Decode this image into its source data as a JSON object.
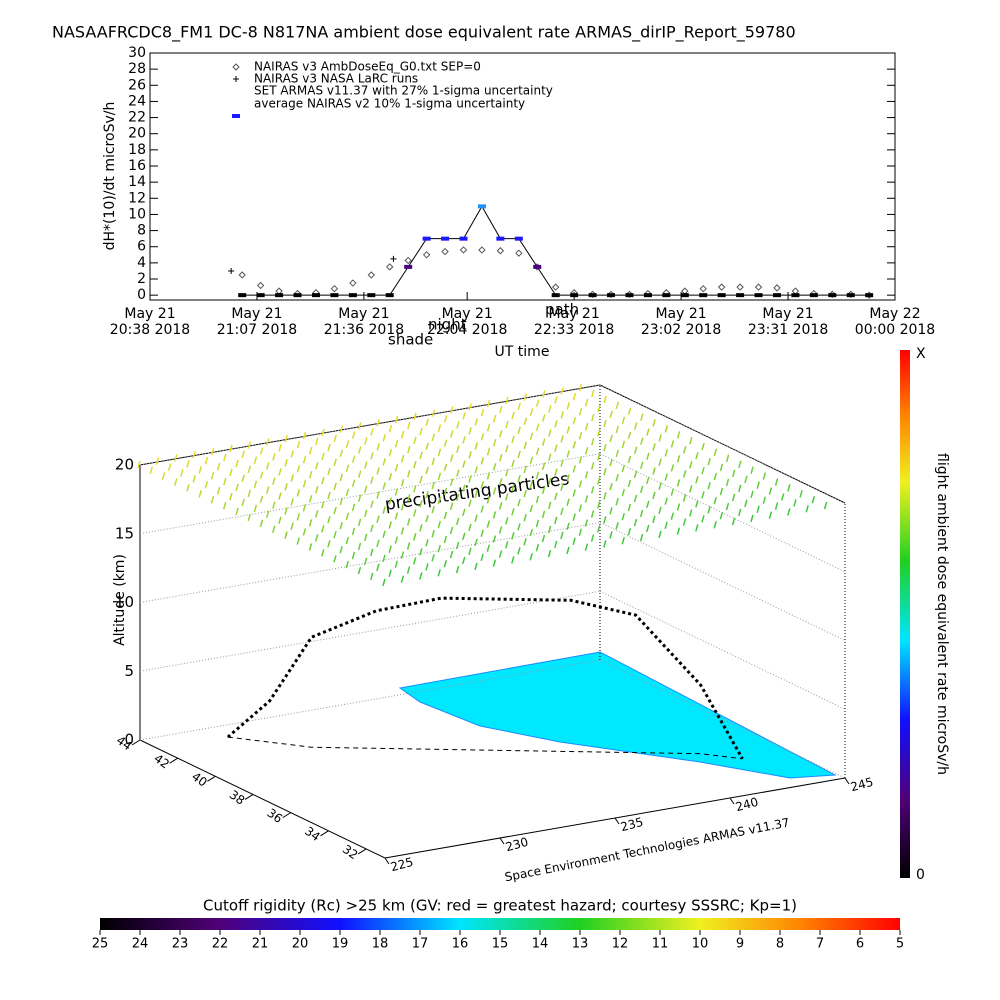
{
  "chart_data": [
    {
      "type": "line",
      "title": "NASAAFRCDC8_FM1 DC-8   N817NA ambient dose equivalent rate ARMAS_dirIP_Report_59780",
      "ylabel": "dH*(10)/dt microSv/h",
      "xlabel": "UT time",
      "annotations": [
        "shade",
        "night",
        "path",
        "average NAIRAS v2 10% 1-sigma uncertainty"
      ],
      "xlim": [
        0,
        202
      ],
      "xticks": [
        {
          "value": 0,
          "label": "May 21",
          "sublabel": "20:38 2018"
        },
        {
          "value": 29,
          "label": "May 21",
          "sublabel": "21:07 2018"
        },
        {
          "value": 58,
          "label": "May 21",
          "sublabel": "21:36 2018"
        },
        {
          "value": 86,
          "label": "May 21",
          "sublabel": "22:04 2018"
        },
        {
          "value": 115,
          "label": "May 21",
          "sublabel": "22:33 2018"
        },
        {
          "value": 144,
          "label": "May 21",
          "sublabel": "23:02 2018"
        },
        {
          "value": 173,
          "label": "May 21",
          "sublabel": "23:31 2018"
        },
        {
          "value": 202,
          "label": "May 22",
          "sublabel": "00:00 2018"
        }
      ],
      "ylim": [
        -0.6,
        30
      ],
      "yticks": [
        0,
        2,
        4,
        6,
        8,
        10,
        12,
        14,
        16,
        18,
        20,
        22,
        24,
        26,
        28,
        30
      ],
      "series": [
        {
          "name": "NAIRAS v3 AmbDoseEq_G0.txt SEP=0",
          "color": "#555555",
          "marker": "diamond",
          "x": [
            25,
            30,
            35,
            40,
            45,
            50,
            55,
            60,
            65,
            70,
            75,
            80,
            85,
            90,
            95,
            100,
            105,
            110,
            115,
            120,
            125,
            130,
            135,
            140,
            145,
            150,
            155,
            160,
            165,
            170,
            175,
            180,
            185,
            190,
            195
          ],
          "values": [
            2.5,
            1.2,
            0.5,
            0.2,
            0.3,
            0.8,
            1.5,
            2.5,
            3.5,
            4.3,
            5.0,
            5.4,
            5.6,
            5.6,
            5.5,
            5.2,
            3.5,
            1.0,
            0.3,
            0.1,
            0.1,
            0.1,
            0.2,
            0.3,
            0.5,
            0.8,
            1.0,
            1.0,
            1.0,
            0.9,
            0.5,
            0.2,
            0.1,
            0.1,
            0
          ]
        },
        {
          "name": "NAIRAS v3 NASA LaRC runs",
          "color": "#000000",
          "marker": "plus",
          "x": [
            22,
            66
          ],
          "values": [
            3,
            4.5
          ]
        },
        {
          "name": "SET ARMAS v11.37 with 27% 1-sigma uncertainty",
          "color": "#1a1aff",
          "marker": "square",
          "x": [
            25,
            30,
            35,
            40,
            45,
            50,
            55,
            60,
            65,
            70,
            75,
            80,
            85,
            90,
            95,
            100,
            105,
            110,
            115,
            120,
            125,
            130,
            135,
            140,
            145,
            150,
            155,
            160,
            165,
            170,
            175,
            180,
            185,
            190,
            195
          ],
          "values": [
            0,
            0,
            0,
            0,
            0,
            0,
            0,
            0,
            0,
            3.5,
            7,
            7,
            7,
            11,
            7,
            7,
            3.5,
            0,
            0,
            0,
            0,
            0,
            0,
            0,
            0,
            0,
            0,
            0,
            0,
            0,
            0,
            0,
            0,
            0,
            0
          ]
        }
      ]
    },
    {
      "type": "surface3d",
      "zlabel": "Altitude (km)",
      "annotations": [
        "precipitating particles",
        "Space Environment Technologies ARMAS v11.37"
      ],
      "xlim": [
        225,
        245
      ],
      "xticks": [
        225,
        230,
        235,
        240,
        245
      ],
      "ylim": [
        31,
        44
      ],
      "yticks": [
        32,
        34,
        36,
        38,
        40,
        42,
        44
      ],
      "zlim": [
        0,
        20
      ],
      "zticks": [
        0,
        5,
        10,
        15,
        20
      ],
      "track": {
        "lon": [
          228,
          229,
          230,
          232,
          234,
          236,
          238,
          240,
          242,
          243
        ],
        "lat": [
          43,
          42,
          41,
          40,
          39,
          38,
          37,
          36,
          35,
          34
        ],
        "alt": [
          0,
          3,
          8,
          10,
          11,
          11,
          11,
          10,
          5,
          0
        ]
      },
      "colorbar": {
        "label": "flight ambient dose equivalent rate microSv/h",
        "min": 0,
        "max_label": "X"
      },
      "rigidity_bar": {
        "title": "Cutoff rigidity (Rc) >25 km (GV: red = greatest hazard; courtesy SSSRC; Kp=1)",
        "lim": [
          25,
          5
        ],
        "ticks": [
          25,
          24,
          23,
          22,
          21,
          20,
          19,
          18,
          17,
          16,
          15,
          14,
          13,
          12,
          11,
          10,
          9,
          8,
          7,
          6,
          5
        ]
      }
    }
  ]
}
